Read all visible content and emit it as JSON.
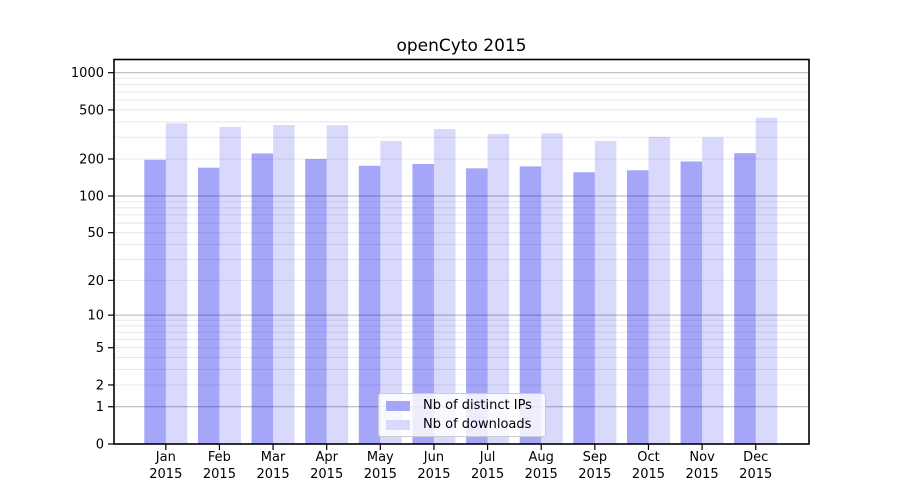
{
  "title": "openCyto 2015",
  "chart_data": {
    "type": "bar",
    "title": "openCyto 2015",
    "categories": [
      "Jan 2015",
      "Feb 2015",
      "Mar 2015",
      "Apr 2015",
      "May 2015",
      "Jun 2015",
      "Jul 2015",
      "Aug 2015",
      "Sep 2015",
      "Oct 2015",
      "Nov 2015",
      "Dec 2015"
    ],
    "series": [
      {
        "name": "Nb of distinct IPs",
        "color": "#0000ee",
        "alpha": 0.35,
        "legend_color": "#a6a6f9",
        "values": [
          197,
          170,
          222,
          200,
          176,
          182,
          168,
          174,
          156,
          162,
          191,
          223
        ]
      },
      {
        "name": "Nb of downloads",
        "color": "#0000ee",
        "alpha": 0.15,
        "legend_color": "#d9d9fc",
        "values": [
          390,
          364,
          377,
          376,
          280,
          350,
          319,
          323,
          280,
          302,
          300,
          432
        ]
      }
    ],
    "yscale": "log1p",
    "ylim": [
      0,
      1280
    ],
    "yticks": [
      1000,
      500,
      200,
      100,
      50,
      20,
      10,
      5,
      2,
      1,
      0
    ],
    "major_grid_values": [
      1,
      10,
      100,
      1000
    ],
    "grid": true,
    "legend_position": "lower center",
    "colors": {
      "background": "#ffffff",
      "axis": "#000000",
      "major_grid": "#b0b0b0",
      "minor_grid": "#e8e8e8"
    }
  }
}
